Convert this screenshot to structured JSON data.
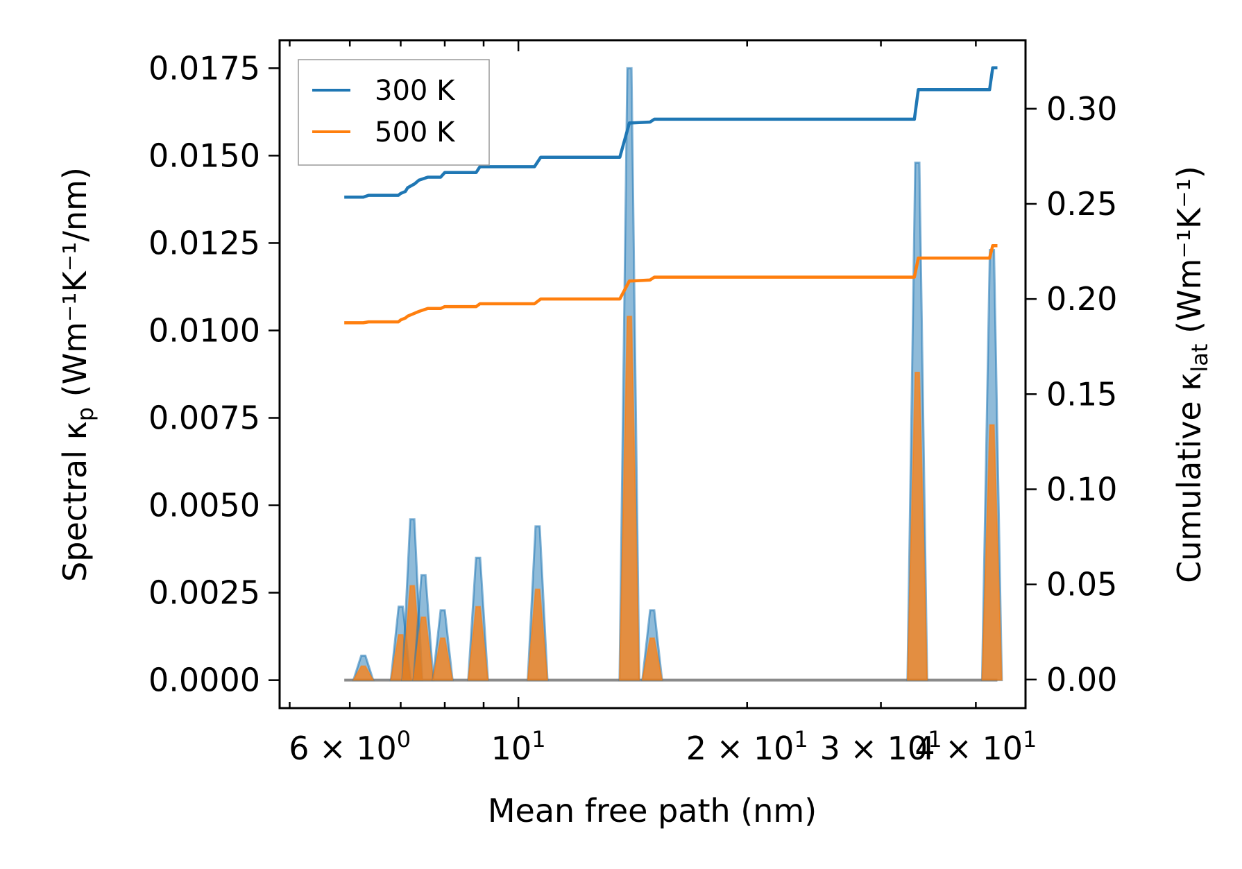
{
  "chart_data": {
    "type": "line",
    "xlabel": "Mean free path (nm)",
    "ylabel_left": {
      "main": "Spectral κ",
      "sub": "p",
      "units": " (Wm⁻¹K⁻¹/nm)"
    },
    "ylabel_right": {
      "main": "Cumulative κ",
      "sub": "lat",
      "units": " (Wm⁻¹K⁻¹)"
    },
    "xscale": "log",
    "xlim": [
      4.85,
      46.5
    ],
    "ylim_left": [
      -0.0008,
      0.0183
    ],
    "ylim_right": [
      -0.015,
      0.336
    ],
    "x_ticks": [
      {
        "value": 6,
        "label": "6 × 10",
        "exp": "0"
      },
      {
        "value": 10,
        "label": "10",
        "exp": "1"
      },
      {
        "value": 20,
        "label": "2 × 10",
        "exp": "1"
      },
      {
        "value": 30,
        "label": "3 × 10",
        "exp": "1"
      },
      {
        "value": 40,
        "label": "4 × 10",
        "exp": "1"
      }
    ],
    "y_ticks_left": [
      {
        "value": 0.0,
        "label": "0.0000"
      },
      {
        "value": 0.0025,
        "label": "0.0025"
      },
      {
        "value": 0.005,
        "label": "0.0050"
      },
      {
        "value": 0.0075,
        "label": "0.0075"
      },
      {
        "value": 0.01,
        "label": "0.0100"
      },
      {
        "value": 0.0125,
        "label": "0.0125"
      },
      {
        "value": 0.015,
        "label": "0.0150"
      },
      {
        "value": 0.0175,
        "label": "0.0175"
      }
    ],
    "y_ticks_right": [
      {
        "value": 0.0,
        "label": "0.00"
      },
      {
        "value": 0.05,
        "label": "0.05"
      },
      {
        "value": 0.1,
        "label": "0.10"
      },
      {
        "value": 0.15,
        "label": "0.15"
      },
      {
        "value": 0.2,
        "label": "0.20"
      },
      {
        "value": 0.25,
        "label": "0.25"
      },
      {
        "value": 0.3,
        "label": "0.30"
      }
    ],
    "legend": {
      "location": "upper-left",
      "entries": [
        {
          "name": "300 K",
          "color": "#1f77b4"
        },
        {
          "name": "500 K",
          "color": "#ff7f0e"
        }
      ]
    },
    "spectral_x_range": [
      5.9,
      42.7
    ],
    "spectral_peaks": [
      {
        "x": 6.25,
        "k300": 0.0007,
        "k500": 0.0004
      },
      {
        "x": 7.0,
        "k300": 0.0021,
        "k500": 0.0013
      },
      {
        "x": 7.25,
        "k300": 0.0046,
        "k500": 0.0027
      },
      {
        "x": 7.5,
        "k300": 0.003,
        "k500": 0.0018
      },
      {
        "x": 7.95,
        "k300": 0.002,
        "k500": 0.0012
      },
      {
        "x": 8.85,
        "k300": 0.0035,
        "k500": 0.0021
      },
      {
        "x": 10.6,
        "k300": 0.0044,
        "k500": 0.0026
      },
      {
        "x": 14.0,
        "k300": 0.0175,
        "k500": 0.0104
      },
      {
        "x": 15.0,
        "k300": 0.002,
        "k500": 0.0012
      },
      {
        "x": 33.5,
        "k300": 0.0148,
        "k500": 0.0088
      },
      {
        "x": 42.0,
        "k300": 0.0123,
        "k500": 0.0073
      }
    ],
    "series": [
      {
        "name": "300 K",
        "axis": "right",
        "color": "#1f77b4",
        "x": [
          5.9,
          6.25,
          6.35,
          6.95,
          7.0,
          7.1,
          7.15,
          7.3,
          7.4,
          7.6,
          7.9,
          8.0,
          8.8,
          8.9,
          10.5,
          10.7,
          13.6,
          14.0,
          14.1,
          14.9,
          15.1,
          33.2,
          33.6,
          41.7,
          42.1,
          42.7
        ],
        "y": [
          0.2535,
          0.2535,
          0.2545,
          0.2545,
          0.2555,
          0.2565,
          0.2585,
          0.2605,
          0.2625,
          0.264,
          0.264,
          0.2665,
          0.2665,
          0.2695,
          0.2695,
          0.2745,
          0.2745,
          0.2925,
          0.2925,
          0.293,
          0.2945,
          0.2945,
          0.31,
          0.31,
          0.3215,
          0.3215
        ]
      },
      {
        "name": "500 K",
        "axis": "right",
        "color": "#ff7f0e",
        "x": [
          5.9,
          6.25,
          6.35,
          6.95,
          7.0,
          7.1,
          7.15,
          7.3,
          7.4,
          7.6,
          7.9,
          8.0,
          8.8,
          8.9,
          10.5,
          10.7,
          13.6,
          14.0,
          14.1,
          14.9,
          15.1,
          33.2,
          33.6,
          41.7,
          42.1,
          42.7
        ],
        "y": [
          0.1875,
          0.1875,
          0.188,
          0.188,
          0.189,
          0.19,
          0.191,
          0.1925,
          0.1935,
          0.195,
          0.195,
          0.196,
          0.196,
          0.1975,
          0.1975,
          0.2,
          0.2,
          0.2095,
          0.2095,
          0.21,
          0.2115,
          0.2115,
          0.2215,
          0.2215,
          0.228,
          0.228
        ]
      }
    ]
  }
}
